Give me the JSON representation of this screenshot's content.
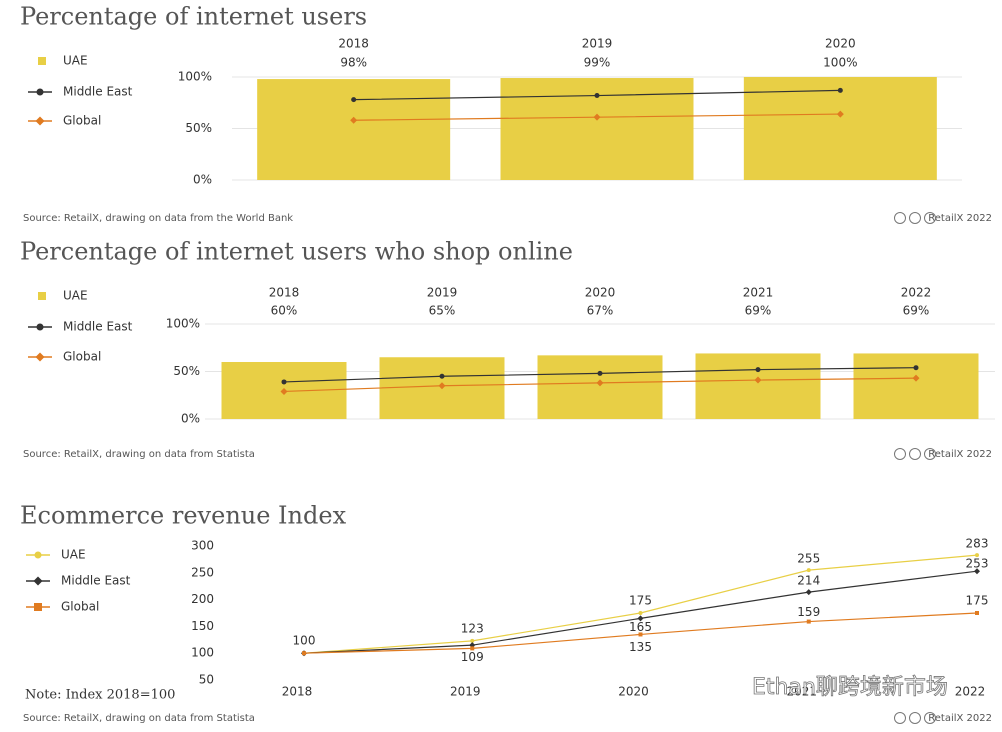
{
  "chart_data": [
    {
      "type": "bar",
      "title": "Percentage of internet users",
      "categories": [
        "2018",
        "2019",
        "2020"
      ],
      "series": [
        {
          "name": "UAE",
          "type": "bar",
          "marker": "square",
          "color": "#e8cf45",
          "values": [
            98,
            99,
            100
          ],
          "value_labels": [
            "98%",
            "99%",
            "100%"
          ]
        },
        {
          "name": "Middle East",
          "type": "line",
          "marker": "circle",
          "color": "#333333",
          "values": [
            78,
            82,
            87
          ]
        },
        {
          "name": "Global",
          "type": "line",
          "marker": "diamond",
          "color": "#e07b20",
          "values": [
            58,
            61,
            64
          ]
        }
      ],
      "ylim": [
        0,
        100
      ],
      "yticks": [
        {
          "value": 0,
          "label": "0%"
        },
        {
          "value": 50,
          "label": "50%"
        },
        {
          "value": 100,
          "label": "100%"
        }
      ],
      "grid": true,
      "source": "Source: RetailX, drawing on data from the World Bank",
      "credit": "RetailX 2022"
    },
    {
      "type": "bar",
      "title": "Percentage of internet users who shop online",
      "categories": [
        "2018",
        "2019",
        "2020",
        "2021",
        "2022"
      ],
      "series": [
        {
          "name": "UAE",
          "type": "bar",
          "marker": "square",
          "color": "#e8cf45",
          "values": [
            60,
            65,
            67,
            69,
            69
          ],
          "value_labels": [
            "60%",
            "65%",
            "67%",
            "69%",
            "69%"
          ]
        },
        {
          "name": "Middle East",
          "type": "line",
          "marker": "circle",
          "color": "#333333",
          "values": [
            39,
            45,
            48,
            52,
            54
          ]
        },
        {
          "name": "Global",
          "type": "line",
          "marker": "diamond",
          "color": "#e07b20",
          "values": [
            29,
            35,
            38,
            41,
            43
          ]
        }
      ],
      "ylim": [
        0,
        100
      ],
      "yticks": [
        {
          "value": 0,
          "label": "0%"
        },
        {
          "value": 50,
          "label": "50%"
        },
        {
          "value": 100,
          "label": "100%"
        }
      ],
      "grid": true,
      "source": "Source: RetailX, drawing on data from Statista",
      "credit": "RetailX 2022"
    },
    {
      "type": "line",
      "title": "Ecommerce revenue Index",
      "categories": [
        "2018",
        "2019",
        "2020",
        "2021",
        "2022"
      ],
      "series": [
        {
          "name": "UAE",
          "type": "line",
          "marker": "circle",
          "color": "#e8cf45",
          "values": [
            100,
            123,
            175,
            255,
            283
          ],
          "value_labels": [
            "100",
            "123",
            "175",
            "255",
            "283"
          ]
        },
        {
          "name": "Middle East",
          "type": "line",
          "marker": "diamond",
          "color": "#333333",
          "values": [
            100,
            115,
            165,
            214,
            253
          ],
          "value_labels": [
            null,
            null,
            "165",
            "214",
            "253"
          ]
        },
        {
          "name": "Global",
          "type": "line",
          "marker": "square",
          "color": "#e07b20",
          "values": [
            100,
            109,
            135,
            159,
            175
          ],
          "value_labels": [
            null,
            "109",
            "135",
            "159",
            "175"
          ]
        }
      ],
      "ylim": [
        50,
        300
      ],
      "yticks": [
        50,
        100,
        150,
        200,
        250,
        300
      ],
      "grid": false,
      "note": "Note: Index 2018=100",
      "source": "Source: RetailX, drawing on data from Statista",
      "credit": "RetailX 2022"
    }
  ],
  "watermark": "Ethan聊跨境新市场"
}
